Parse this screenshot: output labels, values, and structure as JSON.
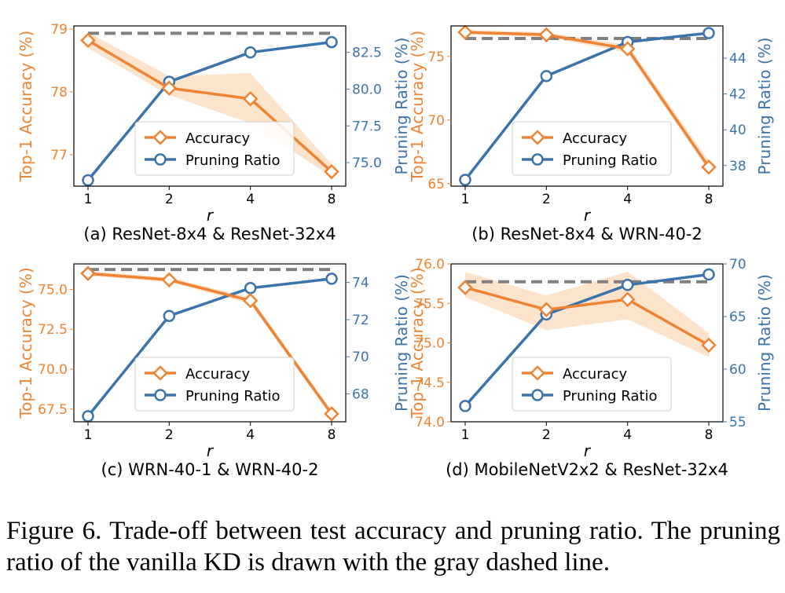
{
  "caption": "Figure 6. Trade-off between test accuracy and pruning ratio. The pruning ratio of the vanilla KD is drawn with the gray dashed line.",
  "colors": {
    "accuracy": "#ee8433",
    "pruning": "#3b74ac",
    "band": "#fce3cc",
    "vanilla": "#808080"
  },
  "chart_data": [
    {
      "type": "line",
      "subtitle": "(a) ResNet-8x4 & ResNet-32x4",
      "xlabel": "r",
      "ylabel_left": "Top-1 Accuracy (%)",
      "ylabel_right": "Pruning Ratio (%)",
      "x": [
        1,
        2,
        4,
        8
      ],
      "x_scale": "log2",
      "xticks": [
        "1",
        "2",
        "4",
        "8"
      ],
      "y_left": {
        "min": 76.5,
        "max": 79.05,
        "ticks": [
          77,
          78,
          79
        ],
        "tick_labels": [
          "77",
          "78",
          "79"
        ]
      },
      "y_right": {
        "min": 73.4,
        "max": 84.3,
        "ticks": [
          75.0,
          77.5,
          80.0,
          82.5
        ],
        "tick_labels": [
          "75.0",
          "77.5",
          "80.0",
          "82.5"
        ]
      },
      "series": [
        {
          "name": "Accuracy",
          "axis": "left",
          "marker": "diamond",
          "values": [
            78.82,
            78.06,
            77.89,
            76.73
          ],
          "band_low": [
            78.7,
            77.95,
            77.5,
            76.65
          ],
          "band_high": [
            78.95,
            78.25,
            78.3,
            76.85
          ]
        },
        {
          "name": "Pruning Ratio",
          "axis": "right",
          "marker": "circle",
          "values": [
            73.8,
            80.5,
            82.5,
            83.2
          ]
        }
      ],
      "vanilla_kd": {
        "axis": "right",
        "value": 83.8
      },
      "legend": "lower-center"
    },
    {
      "type": "line",
      "subtitle": "(b) ResNet-8x4 & WRN-40-2",
      "xlabel": "r",
      "ylabel_left": "Top-1 Accuracy (%)",
      "ylabel_right": "Pruning Ratio (%)",
      "x": [
        1,
        2,
        4,
        8
      ],
      "x_scale": "log2",
      "xticks": [
        "1",
        "2",
        "4",
        "8"
      ],
      "y_left": {
        "min": 64.8,
        "max": 77.4,
        "ticks": [
          65,
          70,
          75
        ],
        "tick_labels": [
          "65",
          "70",
          "75"
        ]
      },
      "y_right": {
        "min": 36.85,
        "max": 45.8,
        "ticks": [
          38,
          40,
          42,
          44
        ],
        "tick_labels": [
          "38",
          "40",
          "42",
          "44"
        ]
      },
      "series": [
        {
          "name": "Accuracy",
          "axis": "left",
          "marker": "diamond",
          "values": [
            76.9,
            76.7,
            75.6,
            66.3
          ],
          "band_low": [
            76.75,
            76.5,
            75.3,
            66.0
          ],
          "band_high": [
            77.1,
            76.9,
            75.9,
            66.8
          ]
        },
        {
          "name": "Pruning Ratio",
          "axis": "right",
          "marker": "circle",
          "values": [
            37.2,
            43.0,
            44.9,
            45.4
          ]
        }
      ],
      "vanilla_kd": {
        "axis": "right",
        "value": 45.1
      },
      "legend": "lower-center"
    },
    {
      "type": "line",
      "subtitle": "(c) WRN-40-1 & WRN-40-2",
      "xlabel": "r",
      "ylabel_left": "Top-1 Accuracy (%)",
      "ylabel_right": "Pruning Ratio (%)",
      "x": [
        1,
        2,
        4,
        8
      ],
      "x_scale": "log2",
      "xticks": [
        "1",
        "2",
        "4",
        "8"
      ],
      "y_left": {
        "min": 66.7,
        "max": 76.6,
        "ticks": [
          67.5,
          70.0,
          72.5,
          75.0
        ],
        "tick_labels": [
          "67.5",
          "70.0",
          "72.5",
          "75.0"
        ]
      },
      "y_right": {
        "min": 66.5,
        "max": 75.0,
        "ticks": [
          68,
          70,
          72,
          74
        ],
        "tick_labels": [
          "68",
          "70",
          "72",
          "74"
        ]
      },
      "series": [
        {
          "name": "Accuracy",
          "axis": "left",
          "marker": "diamond",
          "values": [
            76.0,
            75.6,
            74.3,
            67.2
          ],
          "band_low": [
            75.85,
            75.45,
            74.1,
            67.0
          ],
          "band_high": [
            76.15,
            75.75,
            74.5,
            67.4
          ]
        },
        {
          "name": "Pruning Ratio",
          "axis": "right",
          "marker": "circle",
          "values": [
            66.8,
            72.2,
            73.7,
            74.2
          ]
        }
      ],
      "vanilla_kd": {
        "axis": "right",
        "value": 74.7
      },
      "legend": "lower-center"
    },
    {
      "type": "line",
      "subtitle": "(d) MobileNetV2x2 & ResNet-32x4",
      "xlabel": "r",
      "ylabel_left": "Top-1 Accuracy (%)",
      "ylabel_right": "Pruning Ratio (%)",
      "x": [
        1,
        2,
        4,
        8
      ],
      "x_scale": "log2",
      "xticks": [
        "1",
        "2",
        "4",
        "8"
      ],
      "y_left": {
        "min": 74.0,
        "max": 76.0,
        "ticks": [
          74.0,
          74.5,
          75.0,
          75.5,
          76.0
        ],
        "tick_labels": [
          "74.0",
          "74.5",
          "75.0",
          "75.5",
          "76.0"
        ]
      },
      "y_right": {
        "min": 55,
        "max": 70,
        "ticks": [
          55,
          60,
          65,
          70
        ],
        "tick_labels": [
          "55",
          "60",
          "65",
          "70"
        ]
      },
      "series": [
        {
          "name": "Accuracy",
          "axis": "left",
          "marker": "diamond",
          "values": [
            75.7,
            75.42,
            75.55,
            74.97
          ],
          "band_low": [
            75.58,
            75.16,
            75.3,
            74.82
          ],
          "band_high": [
            75.9,
            75.6,
            75.9,
            75.12
          ]
        },
        {
          "name": "Pruning Ratio",
          "axis": "right",
          "marker": "circle",
          "values": [
            56.5,
            65.2,
            68.0,
            69.0
          ]
        }
      ],
      "vanilla_kd": {
        "axis": "right",
        "value": 68.3
      },
      "legend": "lower-center"
    }
  ]
}
